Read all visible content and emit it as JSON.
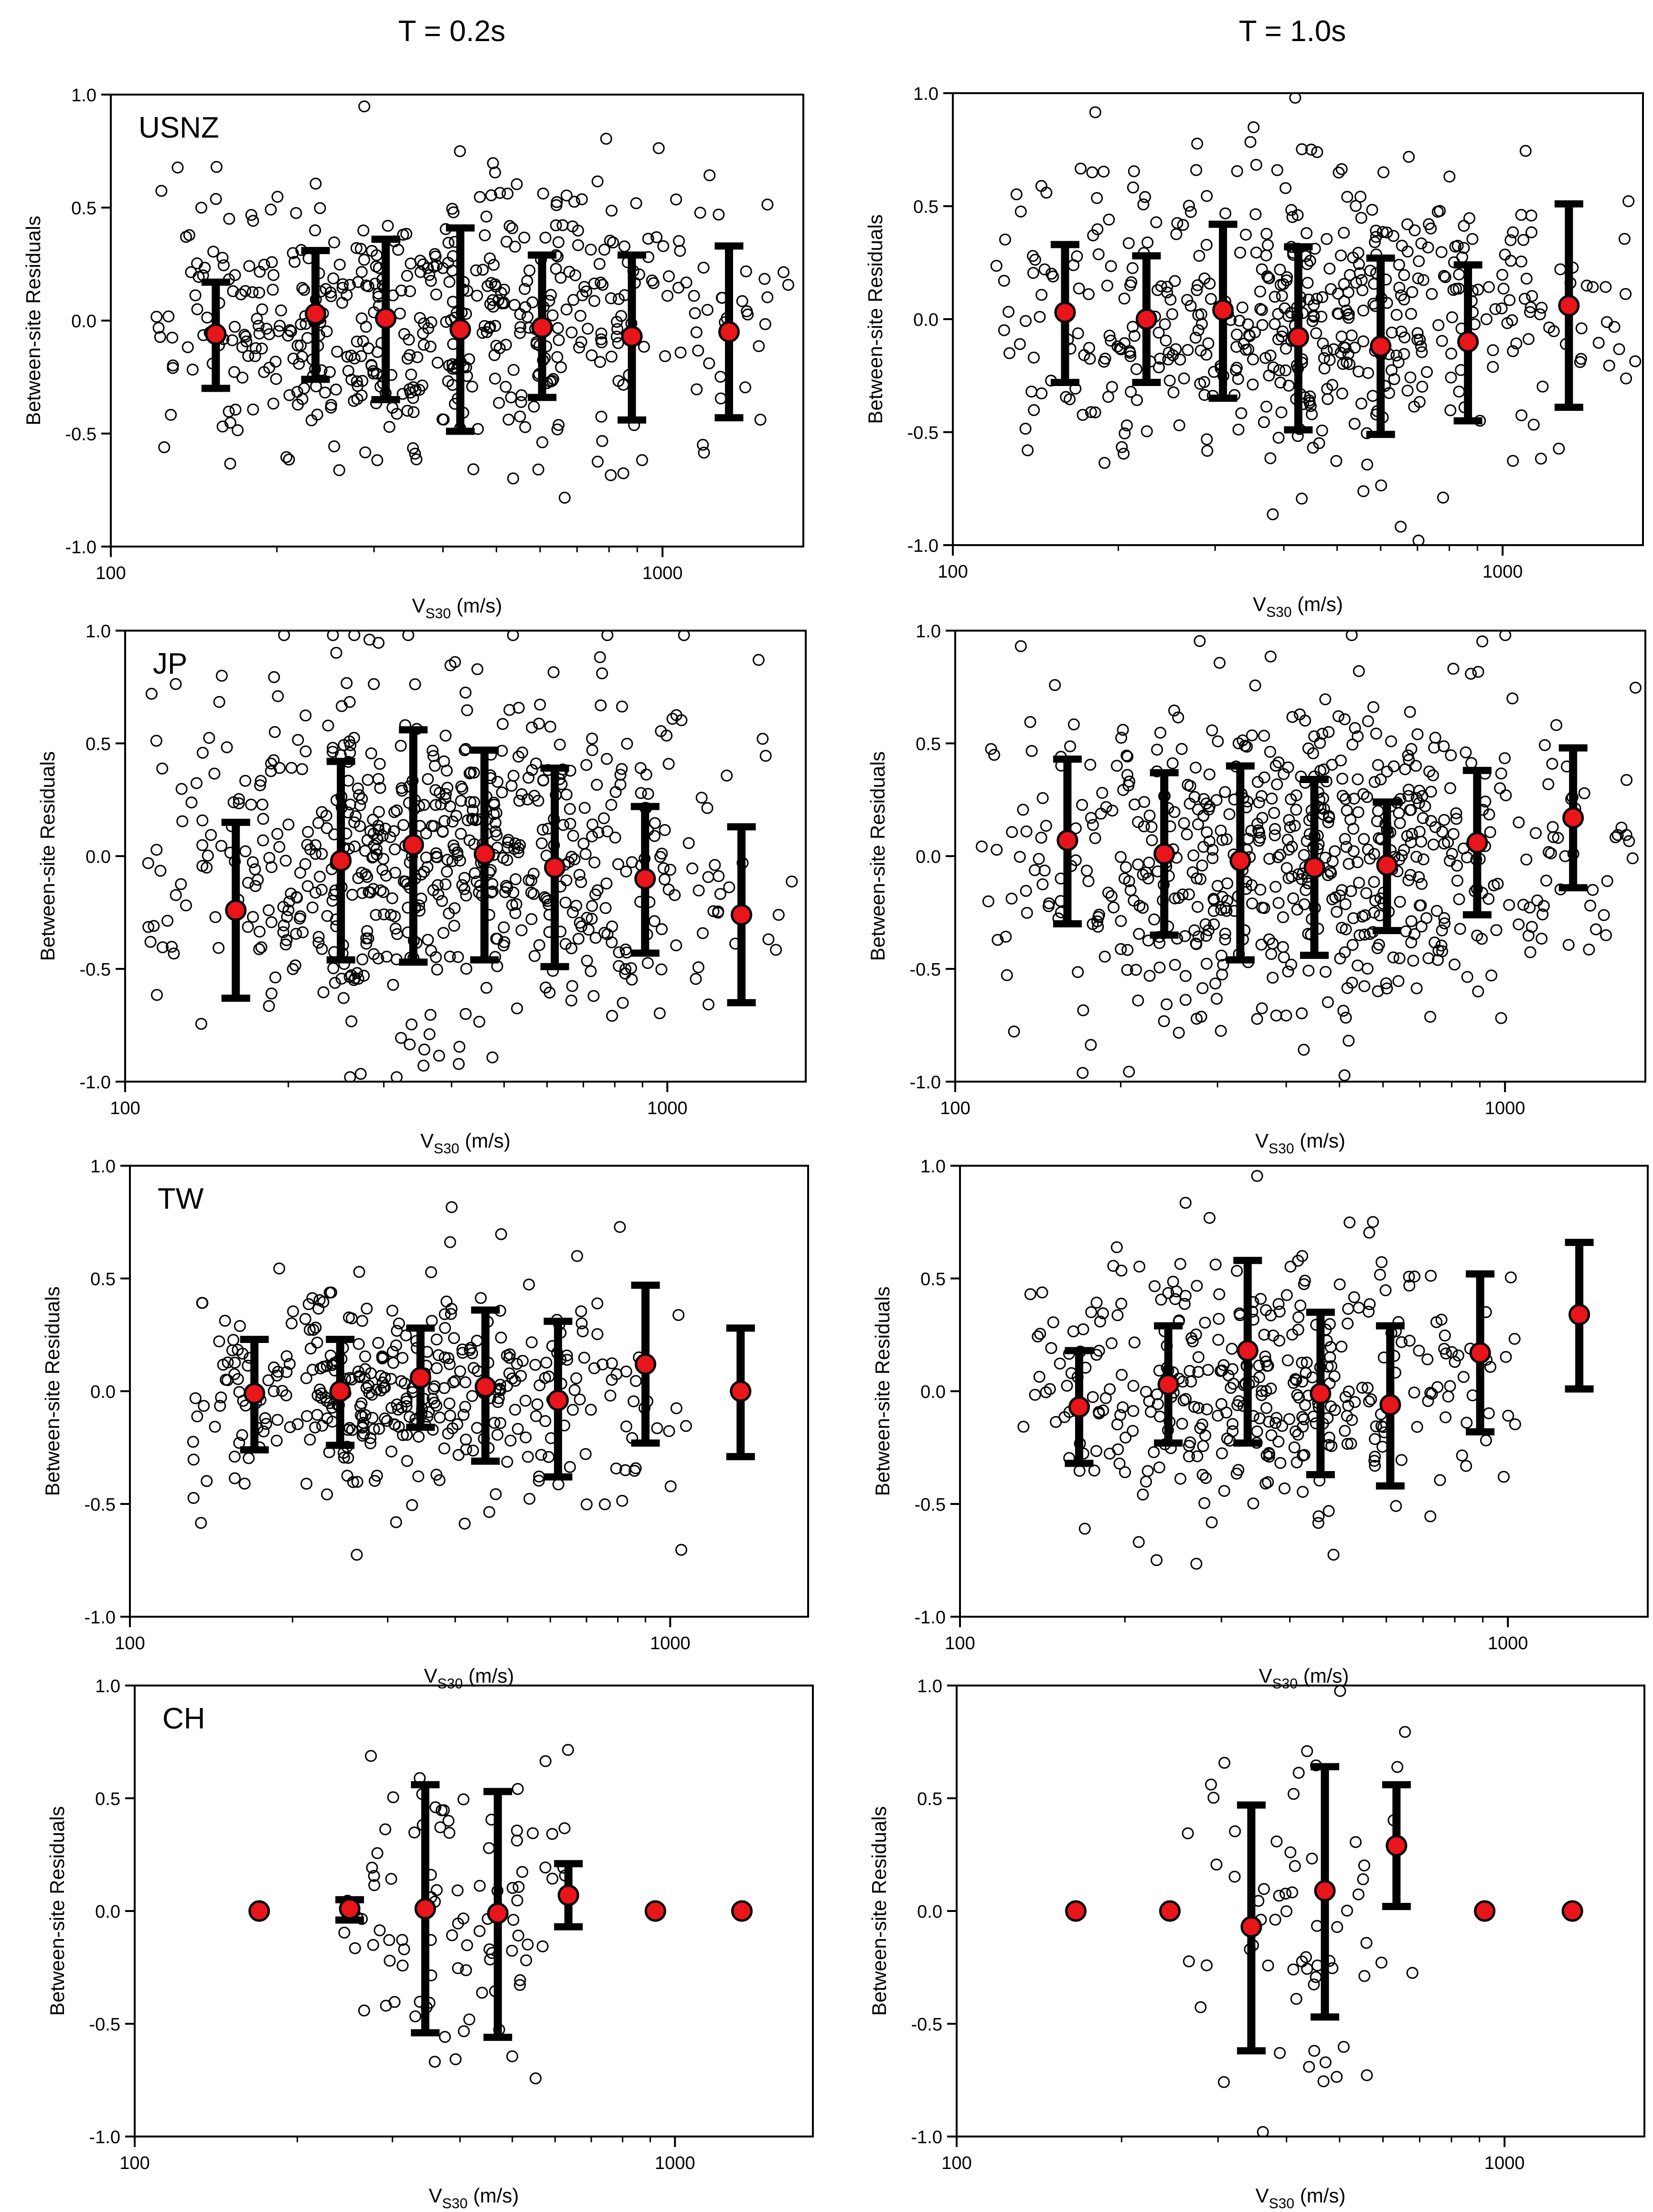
{
  "figure": {
    "col_titles": [
      "T = 0.2s",
      "T = 1.0s"
    ]
  },
  "style": {
    "marker_fill": "#e8151b",
    "marker_stroke": "#000000",
    "errorbar_color": "#000000",
    "scatter_stroke": "#000000"
  },
  "chart_data": [
    {
      "type": "scatter",
      "region": "USNZ",
      "period": "T = 0.2s",
      "xlabel": "V",
      "xlabel_sub": "S30",
      "xlabel_unit": " (m/s)",
      "ylabel": "Between-site Residuals",
      "xscale": "log",
      "xlim": [
        100,
        1800
      ],
      "ylim": [
        -1.0,
        1.0
      ],
      "xticks": [
        100,
        1000
      ],
      "xtick_labels": [
        "100",
        "1000"
      ],
      "yticks": [
        -1.0,
        -0.5,
        0.0,
        0.5,
        1.0
      ],
      "ytick_labels": [
        "-1.0",
        "-0.5",
        "0.0",
        "0.5",
        "1.0"
      ],
      "bins": [
        {
          "x": 155,
          "mean": -0.06,
          "lower": -0.3,
          "upper": 0.17
        },
        {
          "x": 235,
          "mean": 0.03,
          "lower": -0.26,
          "upper": 0.31
        },
        {
          "x": 315,
          "mean": 0.01,
          "lower": -0.35,
          "upper": 0.36
        },
        {
          "x": 430,
          "mean": -0.04,
          "lower": -0.49,
          "upper": 0.41
        },
        {
          "x": 605,
          "mean": -0.03,
          "lower": -0.34,
          "upper": 0.29
        },
        {
          "x": 880,
          "mean": -0.07,
          "lower": -0.44,
          "upper": 0.29
        },
        {
          "x": 1320,
          "mean": -0.05,
          "lower": -0.43,
          "upper": 0.33
        }
      ],
      "points_n": 520,
      "points_seed": 11,
      "scatter_desc": {
        "x_min": 120,
        "x_max": 1700,
        "center": 380,
        "log_spread": 0.3,
        "y_sd": 0.3
      }
    },
    {
      "type": "scatter",
      "region": "",
      "period": "T = 1.0s",
      "xlabel": "V",
      "xlabel_sub": "S30",
      "xlabel_unit": " (m/s)",
      "ylabel": "Between-site Residuals",
      "xscale": "log",
      "xlim": [
        100,
        1800
      ],
      "ylim": [
        -1.0,
        1.0
      ],
      "xticks": [
        100,
        1000
      ],
      "xtick_labels": [
        "100",
        "1000"
      ],
      "yticks": [
        -1.0,
        -0.5,
        0.0,
        0.5,
        1.0
      ],
      "ytick_labels": [
        "-1.0",
        "-0.5",
        "0.0",
        "0.5",
        "1.0"
      ],
      "bins": [
        {
          "x": 160,
          "mean": 0.03,
          "lower": -0.28,
          "upper": 0.33
        },
        {
          "x": 225,
          "mean": 0.0,
          "lower": -0.28,
          "upper": 0.28
        },
        {
          "x": 310,
          "mean": 0.04,
          "lower": -0.35,
          "upper": 0.42
        },
        {
          "x": 425,
          "mean": -0.08,
          "lower": -0.49,
          "upper": 0.32
        },
        {
          "x": 600,
          "mean": -0.12,
          "lower": -0.51,
          "upper": 0.27
        },
        {
          "x": 865,
          "mean": -0.1,
          "lower": -0.45,
          "upper": 0.24
        },
        {
          "x": 1320,
          "mean": 0.06,
          "lower": -0.39,
          "upper": 0.51
        }
      ],
      "points_n": 500,
      "points_seed": 23,
      "scatter_desc": {
        "x_min": 120,
        "x_max": 1750,
        "center": 380,
        "log_spread": 0.3,
        "y_sd": 0.32
      }
    },
    {
      "type": "scatter",
      "region": "JP",
      "period": "T = 0.2s",
      "xlabel": "V",
      "xlabel_sub": "S30",
      "xlabel_unit": " (m/s)",
      "ylabel": "Between-site Residuals",
      "xscale": "log",
      "xlim": [
        100,
        1800
      ],
      "ylim": [
        -1.0,
        1.0
      ],
      "xticks": [
        100,
        1000
      ],
      "xtick_labels": [
        "100",
        "1000"
      ],
      "yticks": [
        -1.0,
        -0.5,
        0.0,
        0.5,
        1.0
      ],
      "ytick_labels": [
        "-1.0",
        "-0.5",
        "0.0",
        "0.5",
        "1.0"
      ],
      "bins": [
        {
          "x": 160,
          "mean": -0.24,
          "lower": -0.63,
          "upper": 0.15
        },
        {
          "x": 250,
          "mean": -0.02,
          "lower": -0.46,
          "upper": 0.42
        },
        {
          "x": 340,
          "mean": 0.05,
          "lower": -0.47,
          "upper": 0.56
        },
        {
          "x": 460,
          "mean": 0.01,
          "lower": -0.46,
          "upper": 0.47
        },
        {
          "x": 620,
          "mean": -0.05,
          "lower": -0.49,
          "upper": 0.39
        },
        {
          "x": 910,
          "mean": -0.1,
          "lower": -0.43,
          "upper": 0.22
        },
        {
          "x": 1370,
          "mean": -0.26,
          "lower": -0.65,
          "upper": 0.13
        }
      ],
      "points_n": 640,
      "points_seed": 37,
      "scatter_desc": {
        "x_min": 110,
        "x_max": 1700,
        "center": 400,
        "log_spread": 0.28,
        "y_sd": 0.38
      }
    },
    {
      "type": "scatter",
      "region": "",
      "period": "T = 1.0s",
      "xlabel": "V",
      "xlabel_sub": "S30",
      "xlabel_unit": " (m/s)",
      "ylabel": "Between-site Residuals",
      "xscale": "log",
      "xlim": [
        100,
        1800
      ],
      "ylim": [
        -1.0,
        1.0
      ],
      "xticks": [
        100,
        1000
      ],
      "xtick_labels": [
        "100",
        "1000"
      ],
      "yticks": [
        -1.0,
        -0.5,
        0.0,
        0.5,
        1.0
      ],
      "ytick_labels": [
        "-1.0",
        "-0.5",
        "0.0",
        "0.5",
        "1.0"
      ],
      "bins": [
        {
          "x": 160,
          "mean": 0.07,
          "lower": -0.3,
          "upper": 0.43
        },
        {
          "x": 240,
          "mean": 0.01,
          "lower": -0.35,
          "upper": 0.37
        },
        {
          "x": 330,
          "mean": -0.02,
          "lower": -0.46,
          "upper": 0.4
        },
        {
          "x": 450,
          "mean": -0.05,
          "lower": -0.44,
          "upper": 0.34
        },
        {
          "x": 610,
          "mean": -0.04,
          "lower": -0.33,
          "upper": 0.24
        },
        {
          "x": 890,
          "mean": 0.06,
          "lower": -0.26,
          "upper": 0.38
        },
        {
          "x": 1330,
          "mean": 0.17,
          "lower": -0.14,
          "upper": 0.48
        }
      ],
      "points_n": 620,
      "points_seed": 53,
      "scatter_desc": {
        "x_min": 110,
        "x_max": 1750,
        "center": 420,
        "log_spread": 0.28,
        "y_sd": 0.36
      }
    },
    {
      "type": "scatter",
      "region": "TW",
      "period": "T = 0.2s",
      "xlabel": "V",
      "xlabel_sub": "S30",
      "xlabel_unit": " (m/s)",
      "ylabel": "Between-site Residuals",
      "xscale": "log",
      "xlim": [
        100,
        1800
      ],
      "ylim": [
        -1.0,
        1.0
      ],
      "xticks": [
        100,
        1000
      ],
      "xtick_labels": [
        "100",
        "1000"
      ],
      "yticks": [
        -1.0,
        -0.5,
        0.0,
        0.5,
        1.0
      ],
      "ytick_labels": [
        "-1.0",
        "-0.5",
        "0.0",
        "0.5",
        "1.0"
      ],
      "bins": [
        {
          "x": 170,
          "mean": -0.01,
          "lower": -0.26,
          "upper": 0.23
        },
        {
          "x": 245,
          "mean": 0.0,
          "lower": -0.24,
          "upper": 0.23
        },
        {
          "x": 345,
          "mean": 0.06,
          "lower": -0.16,
          "upper": 0.28
        },
        {
          "x": 455,
          "mean": 0.02,
          "lower": -0.31,
          "upper": 0.36
        },
        {
          "x": 620,
          "mean": -0.04,
          "lower": -0.38,
          "upper": 0.31
        },
        {
          "x": 900,
          "mean": 0.12,
          "lower": -0.23,
          "upper": 0.47
        },
        {
          "x": 1350,
          "mean": 0.0,
          "lower": -0.29,
          "upper": 0.28
        }
      ],
      "points_n": 380,
      "points_seed": 71,
      "scatter_desc": {
        "x_min": 130,
        "x_max": 1100,
        "center": 330,
        "log_spread": 0.25,
        "y_sd": 0.24
      }
    },
    {
      "type": "scatter",
      "region": "",
      "period": "T = 1.0s",
      "xlabel": "V",
      "xlabel_sub": "S30",
      "xlabel_unit": " (m/s)",
      "ylabel": "Between-site Residuals",
      "xscale": "log",
      "xlim": [
        100,
        1800
      ],
      "ylim": [
        -1.0,
        1.0
      ],
      "xticks": [
        100,
        1000
      ],
      "xtick_labels": [
        "100",
        "1000"
      ],
      "yticks": [
        -1.0,
        -0.5,
        0.0,
        0.5,
        1.0
      ],
      "ytick_labels": [
        "-1.0",
        "-0.5",
        "0.0",
        "0.5",
        "1.0"
      ],
      "bins": [
        {
          "x": 165,
          "mean": -0.07,
          "lower": -0.32,
          "upper": 0.18
        },
        {
          "x": 240,
          "mean": 0.03,
          "lower": -0.23,
          "upper": 0.29
        },
        {
          "x": 335,
          "mean": 0.18,
          "lower": -0.23,
          "upper": 0.58
        },
        {
          "x": 455,
          "mean": -0.01,
          "lower": -0.37,
          "upper": 0.35
        },
        {
          "x": 610,
          "mean": -0.06,
          "lower": -0.42,
          "upper": 0.29
        },
        {
          "x": 890,
          "mean": 0.17,
          "lower": -0.18,
          "upper": 0.52
        },
        {
          "x": 1350,
          "mean": 0.34,
          "lower": 0.01,
          "upper": 0.66
        }
      ],
      "points_n": 360,
      "points_seed": 89,
      "scatter_desc": {
        "x_min": 130,
        "x_max": 1100,
        "center": 330,
        "log_spread": 0.26,
        "y_sd": 0.3
      }
    },
    {
      "type": "scatter",
      "region": "CH",
      "period": "T = 0.2s",
      "xlabel": "V",
      "xlabel_sub": "S30",
      "xlabel_unit": " (m/s)",
      "ylabel": "Between-site Residuals",
      "xscale": "log",
      "xlim": [
        100,
        1800
      ],
      "ylim": [
        -1.0,
        1.0
      ],
      "xticks": [
        100,
        1000
      ],
      "xtick_labels": [
        "100",
        "1000"
      ],
      "yticks": [
        -1.0,
        -0.5,
        0.0,
        0.5,
        1.0
      ],
      "ytick_labels": [
        "-1.0",
        "-0.5",
        "0.0",
        "0.5",
        "1.0"
      ],
      "bins": [
        {
          "x": 170,
          "mean": 0.0
        },
        {
          "x": 250,
          "mean": 0.01,
          "lower": -0.04,
          "upper": 0.05
        },
        {
          "x": 345,
          "mean": 0.01,
          "lower": -0.54,
          "upper": 0.56
        },
        {
          "x": 470,
          "mean": -0.01,
          "lower": -0.56,
          "upper": 0.53
        },
        {
          "x": 635,
          "mean": 0.07,
          "lower": -0.07,
          "upper": 0.21
        },
        {
          "x": 920,
          "mean": 0.0
        },
        {
          "x": 1330,
          "mean": 0.0
        }
      ],
      "points_n": 95,
      "points_seed": 101,
      "scatter_desc": {
        "x_min": 240,
        "x_max": 700,
        "center": 390,
        "log_spread": 0.12,
        "y_sd": 0.38
      }
    },
    {
      "type": "scatter",
      "region": "",
      "period": "T = 1.0s",
      "xlabel": "V",
      "xlabel_sub": "S30",
      "xlabel_unit": " (m/s)",
      "ylabel": "Between-site Residuals",
      "xscale": "log",
      "xlim": [
        100,
        1800
      ],
      "ylim": [
        -1.0,
        1.0
      ],
      "xticks": [
        100,
        1000
      ],
      "xtick_labels": [
        "100",
        "1000"
      ],
      "yticks": [
        -1.0,
        -0.5,
        0.0,
        0.5,
        1.0
      ],
      "ytick_labels": [
        "-1.0",
        "-0.5",
        "0.0",
        "0.5",
        "1.0"
      ],
      "bins": [
        {
          "x": 165,
          "mean": 0.0
        },
        {
          "x": 245,
          "mean": 0.0
        },
        {
          "x": 345,
          "mean": -0.07,
          "lower": -0.62,
          "upper": 0.47
        },
        {
          "x": 470,
          "mean": 0.09,
          "lower": -0.47,
          "upper": 0.64
        },
        {
          "x": 635,
          "mean": 0.29,
          "lower": 0.02,
          "upper": 0.56
        },
        {
          "x": 920,
          "mean": 0.0
        },
        {
          "x": 1330,
          "mean": 0.0
        }
      ],
      "points_n": 65,
      "points_seed": 131,
      "scatter_desc": {
        "x_min": 240,
        "x_max": 700,
        "center": 400,
        "log_spread": 0.12,
        "y_sd": 0.4
      }
    }
  ]
}
